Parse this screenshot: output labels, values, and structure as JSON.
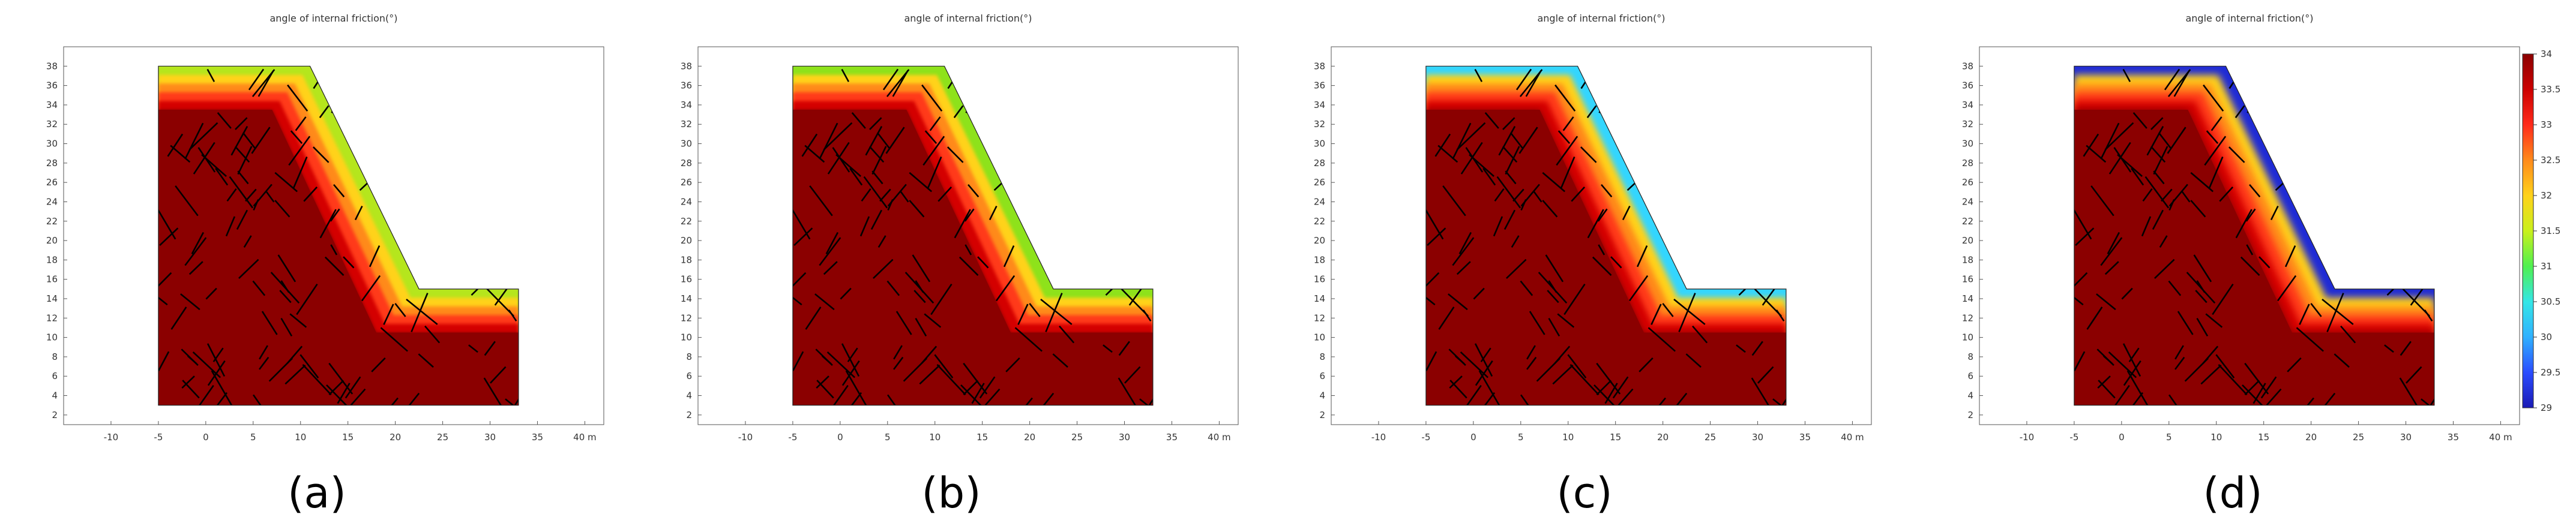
{
  "figure": {
    "panel_title": "angle of internal friction(°)",
    "x_ticks": [
      "-10",
      "-5",
      "0",
      "5",
      "10",
      "15",
      "20",
      "25",
      "30",
      "35",
      "40 m"
    ],
    "y_ticks": [
      "2",
      "4",
      "6",
      "8",
      "10",
      "12",
      "14",
      "16",
      "18",
      "20",
      "22",
      "24",
      "26",
      "28",
      "30",
      "32",
      "34",
      "36",
      "38"
    ],
    "panels": [
      {
        "label": "(a)",
        "surface_color": "#b5e61d",
        "transition": "narrow"
      },
      {
        "label": "(b)",
        "surface_color": "#8ee21b",
        "transition": "narrow"
      },
      {
        "label": "(c)",
        "surface_color": "#33d6ff",
        "transition": "medium"
      },
      {
        "label": "(d)",
        "surface_color": "#1f2bd6",
        "transition": "wide"
      }
    ],
    "colorbar": {
      "min": 29,
      "max": 34,
      "tick_labels": [
        "34",
        "33.5",
        "33",
        "32.5",
        "32",
        "31.5",
        "31",
        "30.5",
        "30",
        "29.5",
        "29"
      ]
    },
    "colors": {
      "core": "#8b0000",
      "joint_lines": "#000000"
    }
  }
}
